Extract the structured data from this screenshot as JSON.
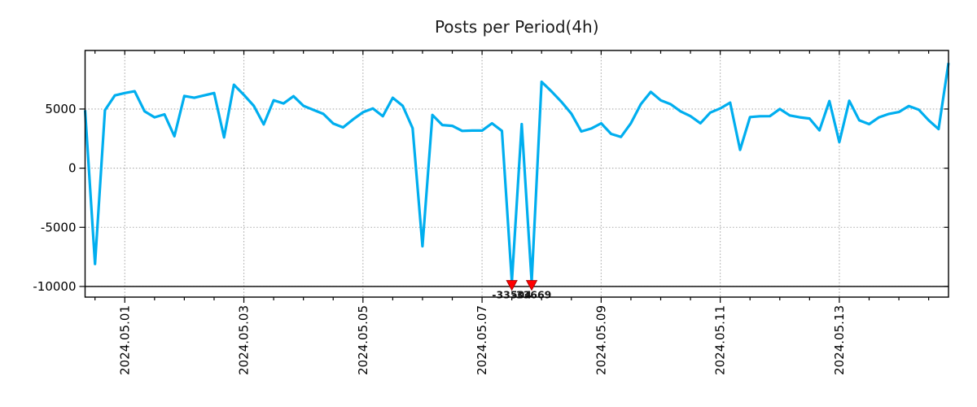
{
  "figure": {
    "title": "Posts per Period(4h)"
  },
  "colors": {
    "line": "#00AEEF",
    "grid": "#aaaaaa",
    "axis": "#000000",
    "text": "#1a1a1a",
    "marker_fill": "#ff0000",
    "marker_edge": "#990000"
  },
  "chart_data": {
    "type": "line",
    "title": "Posts per Period(4h)",
    "xlabel": "",
    "ylabel": "",
    "period": "4h",
    "grid": "dotted",
    "legend": null,
    "ylim": [
      -10900,
      9950
    ],
    "yticks": [
      5000,
      0,
      -5000,
      -10000
    ],
    "ytick_labels": [
      "5000",
      "0",
      "-5000",
      "-10000"
    ],
    "baseline_value": -10000,
    "line_clip_value": -9600,
    "minor_xtick_stride": 3,
    "minor_xtick_offset": 1,
    "xticks": [
      {
        "index": 4,
        "label": "2024.05.01"
      },
      {
        "index": 16,
        "label": "2024.05.03"
      },
      {
        "index": 28,
        "label": "2024.05.05"
      },
      {
        "index": 40,
        "label": "2024.05.07"
      },
      {
        "index": 52,
        "label": "2024.05.09"
      },
      {
        "index": 64,
        "label": "2024.05.11"
      },
      {
        "index": 76,
        "label": "2024.05.13"
      }
    ],
    "annotations": [
      {
        "index": 43,
        "x": "2024.05.07 12:00",
        "value": -33504,
        "label": "-33504",
        "marker": "triangle-down"
      },
      {
        "index": 45,
        "x": "2024.05.07 20:00",
        "value": -33669,
        "label": "-33669",
        "marker": "triangle-down"
      }
    ],
    "x": [
      "2024.04.30 08:00",
      "2024.04.30 12:00",
      "2024.04.30 16:00",
      "2024.04.30 20:00",
      "2024.05.01 00:00",
      "2024.05.01 04:00",
      "2024.05.01 08:00",
      "2024.05.01 12:00",
      "2024.05.01 16:00",
      "2024.05.01 20:00",
      "2024.05.02 00:00",
      "2024.05.02 04:00",
      "2024.05.02 08:00",
      "2024.05.02 12:00",
      "2024.05.02 16:00",
      "2024.05.02 20:00",
      "2024.05.03 00:00",
      "2024.05.03 04:00",
      "2024.05.03 08:00",
      "2024.05.03 12:00",
      "2024.05.03 16:00",
      "2024.05.03 20:00",
      "2024.05.04 00:00",
      "2024.05.04 04:00",
      "2024.05.04 08:00",
      "2024.05.04 12:00",
      "2024.05.04 16:00",
      "2024.05.04 20:00",
      "2024.05.05 00:00",
      "2024.05.05 04:00",
      "2024.05.05 08:00",
      "2024.05.05 12:00",
      "2024.05.05 16:00",
      "2024.05.05 20:00",
      "2024.05.06 00:00",
      "2024.05.06 04:00",
      "2024.05.06 08:00",
      "2024.05.06 12:00",
      "2024.05.06 16:00",
      "2024.05.06 20:00",
      "2024.05.07 00:00",
      "2024.05.07 04:00",
      "2024.05.07 08:00",
      "2024.05.07 12:00",
      "2024.05.07 16:00",
      "2024.05.07 20:00",
      "2024.05.08 00:00",
      "2024.05.08 04:00",
      "2024.05.08 08:00",
      "2024.05.08 12:00",
      "2024.05.08 16:00",
      "2024.05.08 20:00",
      "2024.05.09 00:00",
      "2024.05.09 04:00",
      "2024.05.09 08:00",
      "2024.05.09 12:00",
      "2024.05.09 16:00",
      "2024.05.09 20:00",
      "2024.05.10 00:00",
      "2024.05.10 04:00",
      "2024.05.10 08:00",
      "2024.05.10 12:00",
      "2024.05.10 16:00",
      "2024.05.10 20:00",
      "2024.05.11 00:00",
      "2024.05.11 04:00",
      "2024.05.11 08:00",
      "2024.05.11 12:00",
      "2024.05.11 16:00",
      "2024.05.11 20:00",
      "2024.05.12 00:00",
      "2024.05.12 04:00",
      "2024.05.12 08:00",
      "2024.05.12 12:00",
      "2024.05.12 16:00",
      "2024.05.12 20:00",
      "2024.05.13 00:00",
      "2024.05.13 04:00",
      "2024.05.13 08:00",
      "2024.05.13 12:00",
      "2024.05.13 16:00",
      "2024.05.13 20:00",
      "2024.05.14 00:00",
      "2024.05.14 04:00",
      "2024.05.14 08:00",
      "2024.05.14 12:00",
      "2024.05.14 16:00",
      "2024.05.14 20:00"
    ],
    "values": [
      4900,
      -8100,
      4900,
      6150,
      6350,
      6500,
      4800,
      4300,
      4550,
      2700,
      6100,
      5950,
      6150,
      6350,
      2600,
      7050,
      6200,
      5270,
      3700,
      5740,
      5470,
      6080,
      5270,
      4930,
      4590,
      3780,
      3450,
      4120,
      4730,
      5050,
      4390,
      5950,
      5270,
      3380,
      -6600,
      4500,
      3650,
      3580,
      3150,
      3180,
      3180,
      3790,
      3150,
      -33504,
      3720,
      -33669,
      7300,
      6490,
      5610,
      4600,
      3100,
      3350,
      3790,
      2900,
      2640,
      3800,
      5410,
      6450,
      5740,
      5410,
      4800,
      4400,
      3800,
      4700,
      5050,
      5540,
      1550,
      4320,
      4390,
      4400,
      5000,
      4460,
      4300,
      4200,
      3200,
      5680,
      2200,
      5700,
      4050,
      3720,
      4300,
      4590,
      4750,
      5250,
      4950,
      4050,
      3300,
      8900
    ]
  }
}
